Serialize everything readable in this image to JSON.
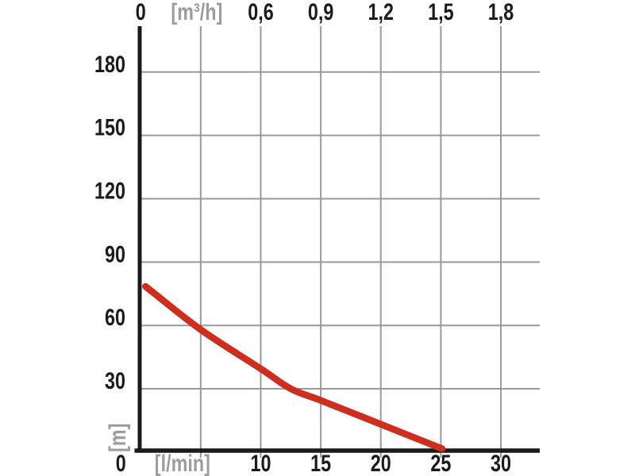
{
  "chart_data": {
    "type": "line",
    "title": "",
    "grid": true,
    "legend": "none",
    "axis_ranges": {
      "x_lmin_visible": [
        0,
        33.2
      ],
      "y_m_visible": [
        0,
        201
      ]
    },
    "x_axis_bottom": {
      "unit_label": "[l/min]",
      "ticks": [
        {
          "value": 0,
          "label": "0",
          "is_unit": false,
          "dx": -25
        },
        {
          "value": 5,
          "label": "[l/min]",
          "is_unit": true,
          "dx": -23
        },
        {
          "value": 10,
          "label": "10",
          "is_unit": false,
          "dx": 0
        },
        {
          "value": 15,
          "label": "15",
          "is_unit": false,
          "dx": 0
        },
        {
          "value": 20,
          "label": "20",
          "is_unit": false,
          "dx": 0
        },
        {
          "value": 25,
          "label": "25",
          "is_unit": false,
          "dx": 0
        },
        {
          "value": 30,
          "label": "30",
          "is_unit": false,
          "dx": 0
        }
      ]
    },
    "x_axis_top": {
      "unit_label": "[m³/h]",
      "m3h_to_lmin_factor": 16.6667,
      "ticks": [
        {
          "value": 0,
          "label": "0",
          "is_unit": false,
          "dx": 0
        },
        {
          "value": 0.3,
          "label": "[m³/h]",
          "is_unit": true,
          "dx": -5
        },
        {
          "value": 0.6,
          "label": "0,6",
          "is_unit": false,
          "dx": 0
        },
        {
          "value": 0.9,
          "label": "0,9",
          "is_unit": false,
          "dx": 0
        },
        {
          "value": 1.2,
          "label": "1,2",
          "is_unit": false,
          "dx": 0
        },
        {
          "value": 1.5,
          "label": "1,5",
          "is_unit": false,
          "dx": 0
        },
        {
          "value": 1.8,
          "label": "1,8",
          "is_unit": false,
          "dx": 0
        }
      ]
    },
    "y_axis": {
      "unit_label": "[m]",
      "ticks": [
        {
          "value": 180,
          "label": "180"
        },
        {
          "value": 150,
          "label": "150"
        },
        {
          "value": 120,
          "label": "120"
        },
        {
          "value": 90,
          "label": "90"
        },
        {
          "value": 60,
          "label": "60"
        },
        {
          "value": 30,
          "label": "30"
        }
      ]
    },
    "series": [
      {
        "name": "pump-head-curve",
        "color": "#ce2e1e",
        "points_lmin_m": [
          [
            0.4,
            78.5
          ],
          [
            5,
            58
          ],
          [
            10,
            39.5
          ],
          [
            12.5,
            30
          ],
          [
            15,
            24.5
          ],
          [
            20,
            13.2
          ],
          [
            25.1,
            1.6
          ]
        ]
      }
    ],
    "colors": {
      "background": "#ffffff",
      "grid": "#9a9a9a",
      "axis": "#1b1b19",
      "tick_label": "#1b1b19",
      "unit_label": "#9c9c9b"
    }
  }
}
